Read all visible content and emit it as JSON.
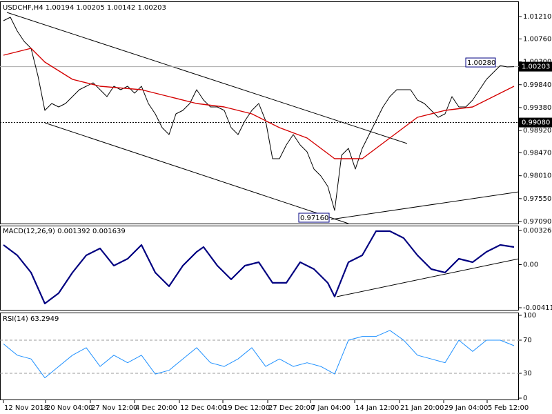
{
  "chart_data": [
    {
      "type": "line",
      "title": "USDCHF,H4  1.00194 1.00205 1.00142 1.00203",
      "xlim": [
        -0.5,
        74.7
      ],
      "ylim": [
        0.97035,
        1.01515
      ],
      "yticks": [
        {
          "value": 1.0121,
          "label": "1.01210"
        },
        {
          "value": 1.0076,
          "label": "1.00760"
        },
        {
          "value": 1.003,
          "label": "1.00300"
        },
        {
          "value": 0.9984,
          "label": "0.99840"
        },
        {
          "value": 0.9938,
          "label": "0.99380"
        },
        {
          "value": 0.9892,
          "label": "0.98920"
        },
        {
          "value": 0.9847,
          "label": "0.98470"
        },
        {
          "value": 0.9801,
          "label": "0.98010"
        },
        {
          "value": 0.9755,
          "label": "0.97550"
        },
        {
          "value": 0.9709,
          "label": "0.97090"
        }
      ],
      "series": [
        {
          "color": "#000000",
          "values": [
            1.01127,
            1.01196,
            1.00919,
            1.00711,
            1.00572,
            1.00017,
            0.99324,
            0.99462,
            0.99393,
            0.99462,
            0.99601,
            0.99739,
            0.99809,
            0.99878,
            0.99739,
            0.99601,
            0.99809,
            0.99739,
            0.99809,
            0.9967,
            0.99809,
            0.99462,
            0.99254,
            0.98977,
            0.98838,
            0.99254,
            0.99324,
            0.99462,
            0.99739,
            0.99532,
            0.99393,
            0.99393,
            0.99324,
            0.98977,
            0.98838,
            0.99116,
            0.99324,
            0.99462,
            0.99116,
            0.98353,
            0.98353,
            0.9863,
            0.98838,
            0.9863,
            0.98491,
            0.98145,
            0.98006,
            0.97798,
            0.97312,
            0.98422,
            0.98561,
            0.98145,
            0.98561,
            0.98838,
            0.99116,
            0.99393,
            0.99601,
            0.99739,
            0.99739,
            0.99739,
            0.99532,
            0.99462,
            0.99324,
            0.99185,
            0.99254,
            0.99601,
            0.99393,
            0.99393,
            0.99532,
            0.99739,
            0.99948,
            1.00087,
            1.00225,
            1.00197,
            1.00203
          ]
        },
        {
          "color": "#d40000",
          "x": [
            0,
            4,
            6,
            10,
            14,
            20,
            24,
            28,
            32,
            36,
            40,
            44,
            48,
            52,
            56,
            60,
            64,
            68,
            74
          ],
          "values": [
            1.00433,
            1.00572,
            1.00295,
            0.99948,
            0.99809,
            0.99739,
            0.99601,
            0.99462,
            0.99393,
            0.99254,
            0.98977,
            0.98769,
            0.98353,
            0.98353,
            0.98769,
            0.99185,
            0.99324,
            0.99393,
            0.99809
          ]
        }
      ],
      "current_price": {
        "value": 1.00203,
        "label": "1.00203"
      },
      "level": {
        "value": 0.9908,
        "label": "0.99080"
      },
      "high_label": {
        "value": 1.0028,
        "label": "1.00280"
      },
      "low_label": {
        "value": 0.9716,
        "label": "0.97160"
      }
    },
    {
      "type": "line",
      "title": "MACD(12,26,9) 0.001392 0.001639",
      "ylim": [
        -0.004383,
        0.003726
      ],
      "yticks": [
        0.003265,
        {
          "value": 0,
          "label": "0.00"
        },
        -0.004119
      ],
      "series": [
        {
          "color": "#000080",
          "x": [
            0,
            2,
            4,
            6,
            8,
            10,
            12,
            14,
            16,
            18,
            20,
            22,
            24,
            26,
            28,
            29,
            31,
            33,
            35,
            37,
            39,
            41,
            43,
            45,
            47,
            48,
            50,
            52,
            54,
            56,
            58,
            60,
            62,
            64,
            66,
            68,
            70,
            72,
            74
          ],
          "values": [
            0.00188,
            0.00089,
            -0.00076,
            -0.00372,
            -0.00273,
            -0.00076,
            0.00089,
            0.00155,
            -0.0001,
            0.00056,
            0.00188,
            -0.00076,
            -0.00207,
            -0.0001,
            0.00122,
            0.00168,
            -0.0001,
            -0.00141,
            -0.0001,
            0.00023,
            -0.00174,
            -0.00174,
            0.00023,
            -0.00043,
            -0.00174,
            -0.00306,
            0.00023,
            0.00089,
            0.0032,
            0.0032,
            0.00254,
            0.00089,
            -0.00043,
            -0.00076,
            0.00056,
            0.00023,
            0.00122,
            0.00188,
            0.00168
          ]
        }
      ]
    },
    {
      "type": "line",
      "title": "RSI(14) 63.2949",
      "ylim": [
        -2.5,
        103.3
      ],
      "yticks": [
        100,
        70,
        30,
        0
      ],
      "dashed_levels": [
        70,
        30
      ],
      "xticks": [
        {
          "value": 0,
          "label": "12 Nov 2018"
        },
        {
          "value": 6.1,
          "label": "20 Nov 04:00"
        },
        {
          "value": 12.6,
          "label": "27 Nov 12:00"
        },
        {
          "value": 19,
          "label": "4 Dec 20:00"
        },
        {
          "value": 25.5,
          "label": "12 Dec 04:00"
        },
        {
          "value": 31.8,
          "label": "19 Dec 12:00"
        },
        {
          "value": 38.3,
          "label": "27 Dec 20:00"
        },
        {
          "value": 44.5,
          "label": "7 Jan 04:00"
        },
        {
          "value": 50.9,
          "label": "14 Jan 12:00"
        },
        {
          "value": 57.4,
          "label": "21 Jan 20:00"
        },
        {
          "value": 63.8,
          "label": "29 Jan 04:00"
        },
        {
          "value": 70.1,
          "label": "5 Feb 12:00"
        }
      ],
      "series": [
        {
          "color": "#1e90ff",
          "x": [
            0,
            2,
            4,
            6,
            8,
            10,
            12,
            14,
            16,
            18,
            20,
            22,
            24,
            26,
            28,
            30,
            32,
            34,
            36,
            38,
            40,
            42,
            44,
            46,
            48,
            50,
            52,
            54,
            56,
            58,
            60,
            62,
            64,
            66,
            68,
            70,
            72,
            74
          ],
          "values": [
            65.5,
            51.8,
            47.3,
            24.5,
            38.2,
            51.8,
            60.9,
            38.2,
            51.8,
            42.7,
            51.8,
            29.1,
            33.6,
            47.3,
            60.9,
            42.7,
            38.2,
            47.3,
            60.9,
            38.2,
            47.3,
            38.2,
            42.7,
            38.2,
            29.1,
            70,
            74.5,
            74.5,
            81.8,
            70,
            51.8,
            47.3,
            42.7,
            70,
            56.4,
            70,
            70,
            63.3
          ]
        }
      ]
    }
  ]
}
